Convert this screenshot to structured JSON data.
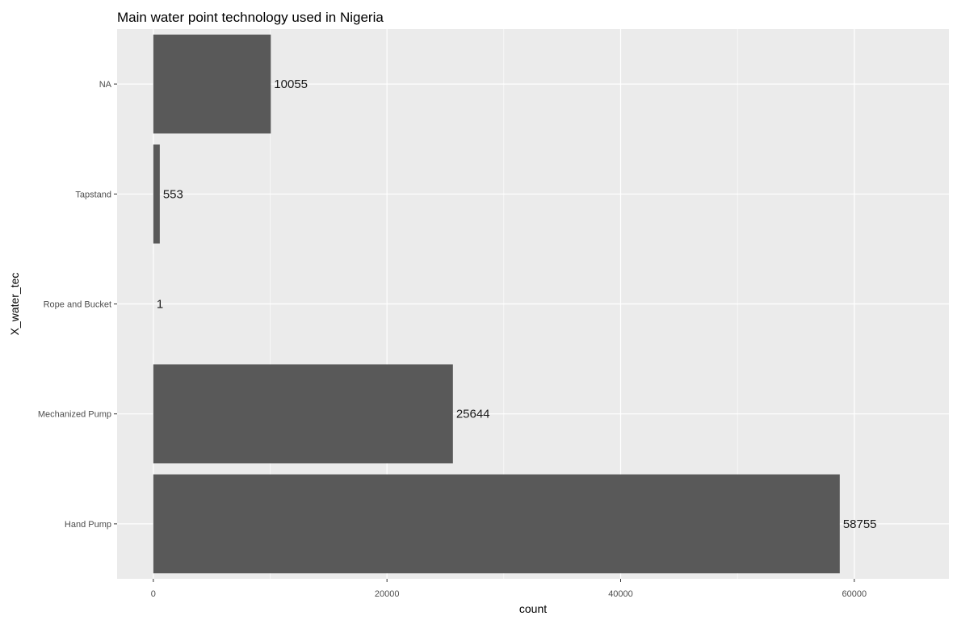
{
  "chart_data": {
    "type": "bar",
    "orientation": "horizontal",
    "title": "Main water point technology used in Nigeria",
    "xlabel": "count",
    "ylabel": "X_water_tec",
    "categories": [
      "Hand Pump",
      "Mechanized Pump",
      "Rope and Bucket",
      "Tapstand",
      "NA"
    ],
    "values": [
      58755,
      25644,
      1,
      553,
      10055
    ],
    "value_labels": [
      "58755",
      "25644",
      "1",
      "553",
      "10055"
    ],
    "x_ticks": [
      0,
      20000,
      40000,
      60000
    ],
    "x_tick_labels": [
      "0",
      "20000",
      "40000",
      "60000"
    ],
    "xlim": [
      -3100,
      68100
    ],
    "grid": true,
    "legend": "none",
    "colors": {
      "panel_background": "#ebebeb",
      "grid_major": "#ffffff",
      "bar_fill": "#595959",
      "tick_color": "#333333",
      "tick_label": "#4d4d4d"
    }
  }
}
